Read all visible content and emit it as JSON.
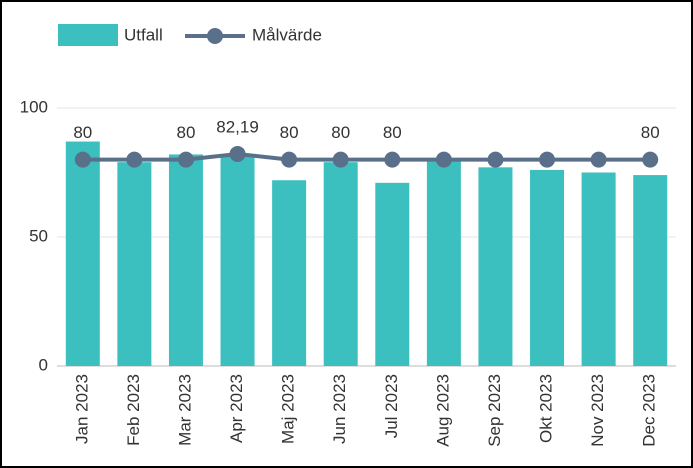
{
  "chart_data": {
    "type": "bar_line",
    "categories": [
      "Jan 2023",
      "Feb 2023",
      "Mar 2023",
      "Apr 2023",
      "Maj 2023",
      "Jun 2023",
      "Jul 2023",
      "Aug 2023",
      "Sep 2023",
      "Okt 2023",
      "Nov 2023",
      "Dec 2023"
    ],
    "series": [
      {
        "name": "Utfall",
        "type": "bar",
        "color": "#3bbfbf",
        "values": [
          87,
          79,
          82,
          82,
          72,
          79,
          71,
          80,
          77,
          76,
          75,
          74
        ]
      },
      {
        "name": "Målvärde",
        "type": "line",
        "color": "#5a6f8a",
        "values": [
          80,
          80,
          80,
          82.19,
          80,
          80,
          80,
          80,
          80,
          80,
          80,
          80
        ],
        "value_labels": [
          "80",
          null,
          "80",
          "82,19",
          "80",
          "80",
          "80",
          null,
          null,
          null,
          null,
          "80"
        ]
      }
    ],
    "ylim": [
      0,
      100
    ],
    "yticks": [
      0,
      50,
      100
    ],
    "grid": true
  }
}
